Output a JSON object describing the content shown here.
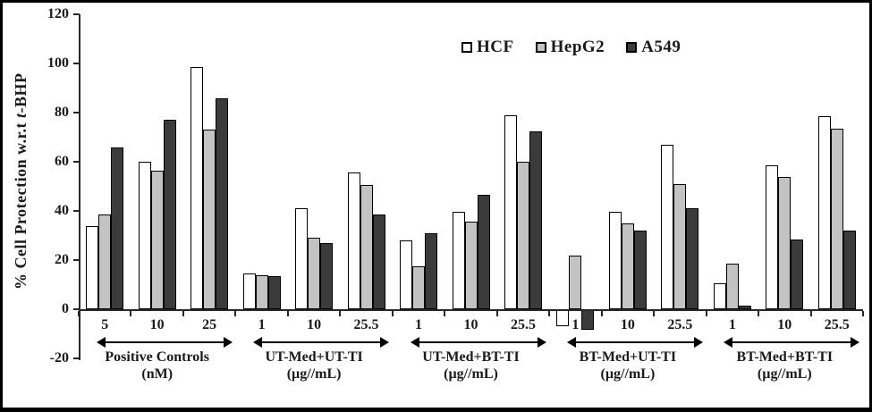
{
  "figure": {
    "background": "#ffffff",
    "border_color": "#000000",
    "axis_color": "#262626",
    "text_color": "#1a1a1a"
  },
  "chart_data": {
    "type": "bar",
    "title": "",
    "ylabel": "% Cell Protection w.r.t t-BHP",
    "ylabel_prefix": "% Cell Protection w.r.t ",
    "ylabel_italic": "t",
    "ylabel_suffix": "-BHP",
    "xlabel": "",
    "grid": false,
    "legend_position": "top-center-inside",
    "y_axis": {
      "min": -20,
      "max": 120,
      "tick_step": 20,
      "tick_values": [
        120,
        100,
        80,
        60,
        40,
        20,
        0,
        -20
      ],
      "tick_labels": [
        "120",
        "100",
        "80",
        "60",
        "40",
        "20",
        "0",
        "-20"
      ]
    },
    "categories": [
      "5",
      "10",
      "25",
      "1",
      "10",
      "25.5",
      "1",
      "10",
      "25.5",
      "1",
      "10",
      "25.5",
      "1",
      "10",
      "25.5"
    ],
    "series": [
      {
        "name": "HCF",
        "fill": "#ffffff",
        "border": "#000000",
        "values": [
          34,
          60,
          98.5,
          14.5,
          41,
          55.5,
          28,
          39.5,
          79,
          -6.5,
          39.5,
          67,
          10.5,
          58.5,
          78.5
        ]
      },
      {
        "name": "HepG2",
        "fill": "#c3c3c3",
        "border": "#000000",
        "values": [
          38.5,
          56.5,
          73,
          14,
          29,
          50.5,
          17.5,
          35.5,
          60,
          22,
          35,
          51,
          18.5,
          54,
          73.5
        ]
      },
      {
        "name": "A549",
        "fill": "#3b3b3b",
        "border": "#000000",
        "values": [
          66,
          77,
          86,
          13.5,
          27,
          38.5,
          31,
          46.5,
          72.5,
          -8,
          32,
          41,
          1.5,
          28.5,
          32
        ]
      }
    ],
    "groups": [
      {
        "label": "Positive Controls",
        "units": "(nM)",
        "categories": [
          "5",
          "10",
          "25"
        ]
      },
      {
        "label": "UT-Med+UT-TI",
        "units": "(µg//mL)",
        "categories": [
          "1",
          "10",
          "25.5"
        ]
      },
      {
        "label": "UT-Med+BT-TI",
        "units": "(µg//mL)",
        "categories": [
          "1",
          "10",
          "25.5"
        ]
      },
      {
        "label": "BT-Med+UT-TI",
        "units": "(µg//mL)",
        "categories": [
          "1",
          "10",
          "25.5"
        ]
      },
      {
        "label": "BT-Med+BT-TI",
        "units": "(µg//mL)",
        "categories": [
          "1",
          "10",
          "25.5"
        ]
      }
    ]
  }
}
